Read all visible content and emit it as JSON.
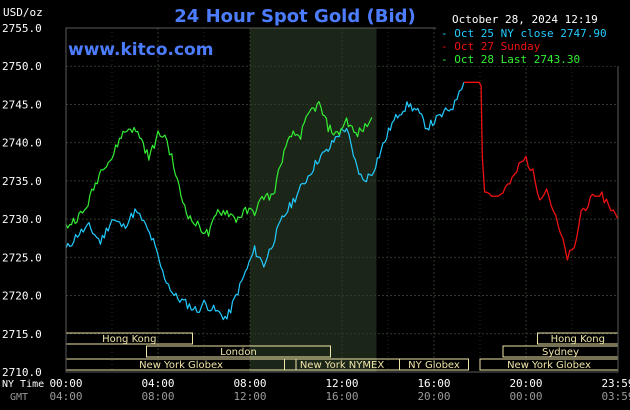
{
  "chart_data": {
    "type": "line",
    "title": "24 Hour Spot Gold (Bid)",
    "ylabel": "USD/oz",
    "datetime": "October 28, 2024 12:19",
    "watermark": "www.kitco.com",
    "ylim": [
      2710,
      2755
    ],
    "yticks": [
      "2755.0",
      "2750.0",
      "2745.0",
      "2740.0",
      "2735.0",
      "2730.0",
      "2725.0",
      "2720.0",
      "2715.0",
      "2710.0"
    ],
    "xlim": [
      0,
      24
    ],
    "x_ticks_ny": [
      "00:00",
      "04:00",
      "08:00",
      "12:00",
      "16:00",
      "20:00",
      "23:59"
    ],
    "x_ticks_gmt": [
      "04:00",
      "08:00",
      "12:00",
      "16:00",
      "20:00",
      "00:00",
      "03:59"
    ],
    "x_row_labels": {
      "ny": "NY Time",
      "gmt": "GMT"
    },
    "legend": [
      {
        "text": "Oct 25 NY close 2747.90",
        "color": "#22ccff"
      },
      {
        "text": "Oct 27 Sunday",
        "color": "#ee1111"
      },
      {
        "text": "Oct 28 Last 2743.30",
        "color": "#33ee33"
      }
    ],
    "series": [
      {
        "name": "Oct 25",
        "color": "#22ccff",
        "x": [
          0,
          0.5,
          1,
          1.5,
          2,
          2.5,
          3,
          3.3,
          3.8,
          4.2,
          4.7,
          5.2,
          5.7,
          6,
          6.5,
          7,
          7.4,
          7.8,
          8.2,
          8.6,
          9,
          9.4,
          9.8,
          10.2,
          10.6,
          11,
          11.4,
          11.8,
          12.2,
          12.5,
          12.9,
          13.3,
          13.7,
          14.1,
          14.5,
          14.9,
          15.3,
          15.7,
          16.1,
          16.5,
          16.9,
          17.1,
          17.3
        ],
        "y": [
          2726,
          2728,
          2729,
          2727,
          2730,
          2729,
          2731,
          2730,
          2727,
          2723,
          2720,
          2719,
          2718,
          2719,
          2718,
          2717,
          2720,
          2723,
          2726,
          2724,
          2727,
          2730,
          2732,
          2734,
          2736,
          2738,
          2739,
          2741,
          2742,
          2738,
          2735,
          2736,
          2739,
          2742,
          2744,
          2745,
          2744,
          2742,
          2743,
          2744,
          2745,
          2747,
          2747.9
        ]
      },
      {
        "name": "Oct 27",
        "color": "#ee1111",
        "x": [
          17.3,
          17.8,
          18.05,
          18.1,
          18.2,
          18.5,
          18.8,
          19.1,
          19.4,
          19.7,
          20.0,
          20.3,
          20.6,
          20.9,
          21.2,
          21.5,
          21.8,
          22.1,
          22.4,
          22.7,
          23.0,
          23.3,
          23.6,
          23.99
        ],
        "y": [
          2747.9,
          2747.9,
          2747.9,
          2738,
          2734,
          2733,
          2733,
          2734,
          2735,
          2737,
          2738,
          2736,
          2733,
          2734,
          2731,
          2728,
          2725,
          2726,
          2731,
          2732,
          2733,
          2733,
          2732,
          2730
        ]
      },
      {
        "name": "Oct 28",
        "color": "#33ee33",
        "x": [
          0,
          0.4,
          0.8,
          1.2,
          1.6,
          2,
          2.4,
          2.8,
          3.2,
          3.6,
          4,
          4.3,
          4.6,
          5,
          5.4,
          5.8,
          6.2,
          6.6,
          7,
          7.4,
          7.8,
          8.2,
          8.6,
          9,
          9.4,
          9.8,
          10.2,
          10.6,
          11,
          11.4,
          11.8,
          12.2,
          12.6,
          13.0,
          13.3
        ],
        "y": [
          2729,
          2730,
          2731,
          2734,
          2737,
          2738,
          2741,
          2742,
          2741,
          2738,
          2741,
          2741,
          2738,
          2733,
          2730,
          2729,
          2728,
          2731,
          2731,
          2730,
          2731,
          2731,
          2733,
          2733,
          2738,
          2741,
          2741,
          2744,
          2745,
          2742,
          2741,
          2743,
          2741,
          2742,
          2743.3
        ]
      }
    ],
    "shaded_window": [
      8,
      13.5
    ],
    "markets": [
      {
        "label": "Hong Kong",
        "start": 0,
        "end": 5.5,
        "row": 0
      },
      {
        "label": "London",
        "start": 3.5,
        "end": 11.5,
        "row": 1
      },
      {
        "label": "New York Globex",
        "start": 0,
        "end": 10,
        "row": 2
      },
      {
        "label": "New York NYMEX",
        "start": 9.5,
        "end": 14.5,
        "row": 2
      },
      {
        "label": "NY Globex",
        "start": 14.5,
        "end": 17.5,
        "row": 2
      },
      {
        "label": "Hong Kong",
        "start": 20.5,
        "end": 24,
        "row": 0
      },
      {
        "label": "Sydney",
        "start": 19,
        "end": 24,
        "row": 1
      },
      {
        "label": "New York Globex",
        "start": 18,
        "end": 24,
        "row": 2
      }
    ],
    "market_bar_color": "#efe5a8",
    "grid": true
  }
}
